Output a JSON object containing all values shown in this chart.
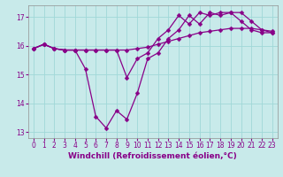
{
  "xlabel": "Windchill (Refroidissement éolien,°C)",
  "xlim": [
    -0.5,
    23.5
  ],
  "ylim": [
    12.8,
    17.4
  ],
  "yticks": [
    13,
    14,
    15,
    16,
    17
  ],
  "xticks": [
    0,
    1,
    2,
    3,
    4,
    5,
    6,
    7,
    8,
    9,
    10,
    11,
    12,
    13,
    14,
    15,
    16,
    17,
    18,
    19,
    20,
    21,
    22,
    23
  ],
  "bg_color": "#c8eaea",
  "grid_color": "#a0d8d8",
  "line_color": "#880088",
  "series1": [
    15.9,
    16.05,
    15.9,
    15.85,
    15.85,
    15.2,
    13.55,
    13.15,
    13.75,
    13.45,
    14.35,
    15.55,
    15.75,
    16.25,
    16.55,
    17.05,
    16.75,
    17.15,
    17.05,
    17.15,
    17.15,
    16.85,
    16.55,
    16.45
  ],
  "series2": [
    15.9,
    16.05,
    15.9,
    15.85,
    15.85,
    15.85,
    15.85,
    15.85,
    15.85,
    15.85,
    15.9,
    15.95,
    16.05,
    16.15,
    16.25,
    16.35,
    16.45,
    16.5,
    16.55,
    16.6,
    16.6,
    16.6,
    16.55,
    16.5
  ],
  "series3": [
    15.9,
    16.05,
    15.9,
    15.85,
    15.85,
    15.85,
    15.85,
    15.85,
    15.85,
    14.9,
    15.55,
    15.75,
    16.25,
    16.55,
    17.05,
    16.75,
    17.15,
    17.05,
    17.15,
    17.15,
    16.85,
    16.55,
    16.45,
    16.45
  ],
  "markersize": 2.5,
  "linewidth": 0.9,
  "tick_fontsize": 5.5,
  "xlabel_fontsize": 6.5
}
